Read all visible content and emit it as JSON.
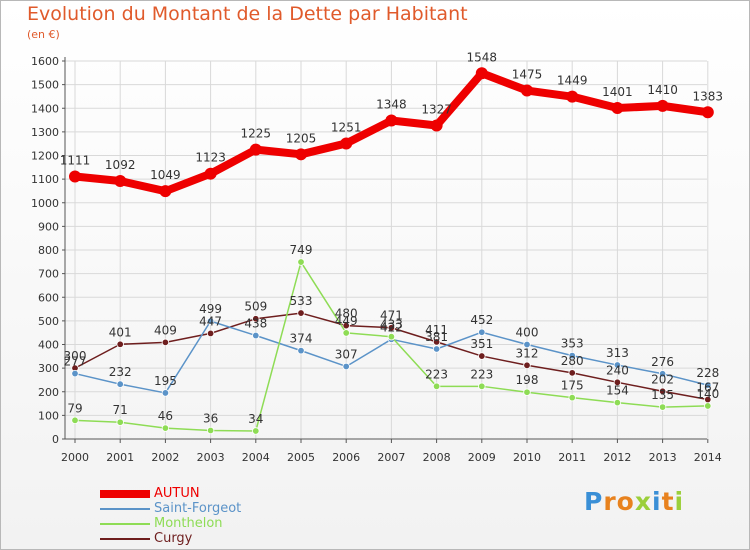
{
  "title": "Evolution du Montant de la Dette par Habitant",
  "unit_label": "(en €)",
  "logo": {
    "text": "Proxiti"
  },
  "chart_data": {
    "type": "line",
    "title": "Evolution du Montant de la Dette par Habitant",
    "ylabel": "(en €)",
    "xlabel": "",
    "ylim": [
      0,
      1600
    ],
    "yticks": [
      0,
      100,
      200,
      300,
      400,
      500,
      600,
      700,
      800,
      900,
      1000,
      1100,
      1200,
      1300,
      1400,
      1500,
      1600
    ],
    "categories": [
      "2000",
      "2001",
      "2002",
      "2003",
      "2004",
      "2005",
      "2006",
      "2007",
      "2008",
      "2009",
      "2010",
      "2011",
      "2012",
      "2013",
      "2014"
    ],
    "grid": true,
    "legend_position": "bottom-left",
    "series": [
      {
        "name": "AUTUN",
        "color": "#ee0000",
        "values": [
          1111,
          1092,
          1049,
          1123,
          1225,
          1205,
          1251,
          1348,
          1327,
          1548,
          1475,
          1449,
          1401,
          1410,
          1383
        ]
      },
      {
        "name": "Saint-Forgeot",
        "color": "#5b93c8",
        "values": [
          277,
          232,
          195,
          499,
          438,
          374,
          307,
          422,
          381,
          452,
          400,
          353,
          313,
          276,
          228
        ]
      },
      {
        "name": "Monthelon",
        "color": "#8edc55",
        "values": [
          79,
          71,
          46,
          36,
          34,
          749,
          449,
          433,
          223,
          223,
          198,
          175,
          154,
          135,
          140
        ]
      },
      {
        "name": "Curgy",
        "color": "#6e1e1e",
        "values": [
          300,
          401,
          409,
          447,
          509,
          533,
          480,
          471,
          411,
          351,
          312,
          280,
          240,
          202,
          167
        ]
      }
    ]
  }
}
